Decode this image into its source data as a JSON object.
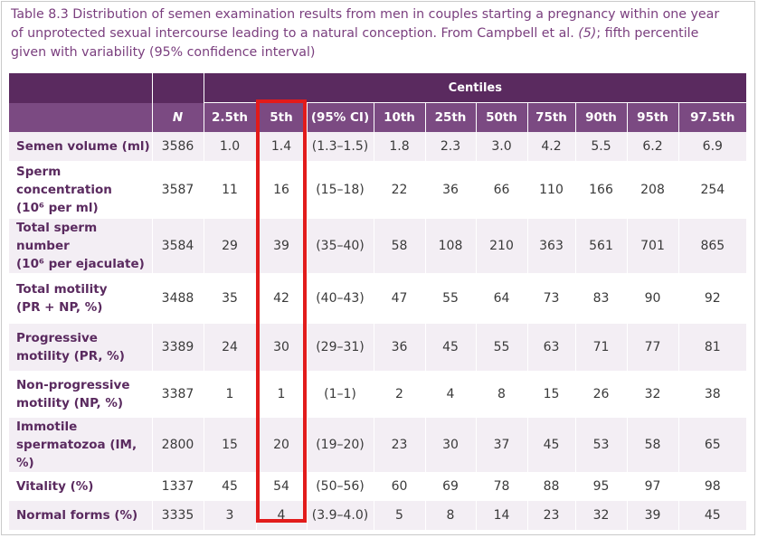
{
  "caption": {
    "text": "Table 8.3 Distribution of semen examination results from men in couples starting a pregnancy within one year of unprotected sexual intercourse leading to a natural conception. From Campbell et al. ",
    "ref": "(5)",
    "text_after": "; fifth percentile given with variability (95% confidence interval)"
  },
  "table": {
    "group_header": "Centiles",
    "columns": [
      "N",
      "2.5th",
      "5th",
      "(95% CI)",
      "10th",
      "25th",
      "50th",
      "75th",
      "90th",
      "95th",
      "97.5th"
    ],
    "rows": [
      {
        "label": [
          "Semen volume (ml)"
        ],
        "values": [
          "3586",
          "1.0",
          "1.4",
          "(1.3–1.5)",
          "1.8",
          "2.3",
          "3.0",
          "4.2",
          "5.5",
          "6.2",
          "6.9"
        ]
      },
      {
        "label": [
          "Sperm",
          "concentration",
          "(10⁶ per ml)"
        ],
        "values": [
          "3587",
          "11",
          "16",
          "(15–18)",
          "22",
          "36",
          "66",
          "110",
          "166",
          "208",
          "254"
        ]
      },
      {
        "label": [
          "Total sperm number",
          "(10⁶ per ejaculate)"
        ],
        "values": [
          "3584",
          "29",
          "39",
          "(35–40)",
          "58",
          "108",
          "210",
          "363",
          "561",
          "701",
          "865"
        ]
      },
      {
        "label": [
          "Total motility",
          "(PR + NP, %)"
        ],
        "values": [
          "3488",
          "35",
          "42",
          "(40–43)",
          "47",
          "55",
          "64",
          "73",
          "83",
          "90",
          "92"
        ]
      },
      {
        "label": [
          "Progressive",
          "motility (PR, %)"
        ],
        "values": [
          "3389",
          "24",
          "30",
          "(29–31)",
          "36",
          "45",
          "55",
          "63",
          "71",
          "77",
          "81"
        ]
      },
      {
        "label": [
          "Non-progressive",
          "motility (NP, %)"
        ],
        "values": [
          "3387",
          "1",
          "1",
          "(1–1)",
          "2",
          "4",
          "8",
          "15",
          "26",
          "32",
          "38"
        ]
      },
      {
        "label": [
          "Immotile",
          "spermatozoa (IM, %)"
        ],
        "values": [
          "2800",
          "15",
          "20",
          "(19–20)",
          "23",
          "30",
          "37",
          "45",
          "53",
          "58",
          "65"
        ]
      },
      {
        "label": [
          "Vitality (%)"
        ],
        "values": [
          "1337",
          "45",
          "54",
          "(50–56)",
          "60",
          "69",
          "78",
          "88",
          "95",
          "97",
          "98"
        ]
      },
      {
        "label": [
          "Normal forms (%)"
        ],
        "values": [
          "3335",
          "3",
          "4",
          "(3.9–4.0)",
          "5",
          "8",
          "14",
          "23",
          "32",
          "39",
          "45"
        ]
      }
    ]
  },
  "colors": {
    "header_dark": "#5a2a5f",
    "header_mid": "#7b4a82",
    "row_stripe": "#f3eef4",
    "highlight": "#e21b1b",
    "caption_text": "#7a3e7e"
  }
}
